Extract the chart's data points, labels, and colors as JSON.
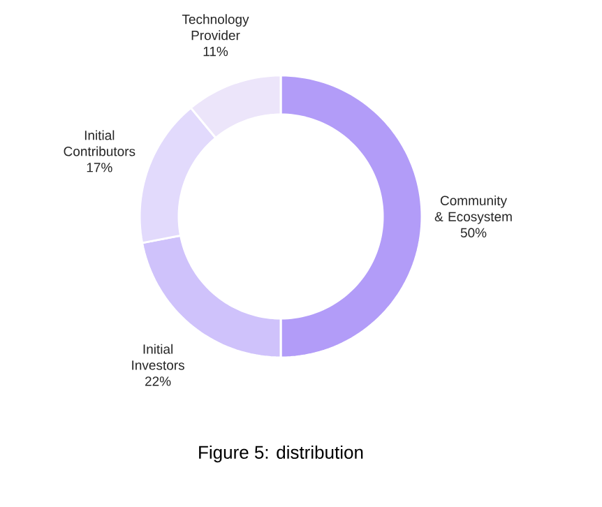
{
  "chart_data": {
    "type": "donut",
    "title": "Figure 5: distribution",
    "categories": [
      "Community & Ecosystem",
      "Initial Investors",
      "Initial Contributors",
      "Technology Provider"
    ],
    "values": [
      50,
      22,
      17,
      11
    ],
    "value_labels": [
      "50%",
      "22%",
      "17%",
      "11%"
    ],
    "colors": [
      "#b29cf8",
      "#cfc2fb",
      "#e2daFC",
      "#ece5fa"
    ]
  }
}
